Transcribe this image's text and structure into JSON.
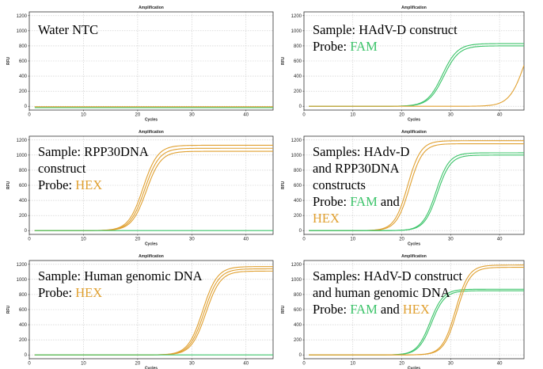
{
  "colors": {
    "FAM": "#3cc46a",
    "HEX": "#e0a030",
    "plot_border": "#333333",
    "grid": "#c8c8c8",
    "baseline": "#e6b85c"
  },
  "chart_data": [
    {
      "type": "line",
      "title": "Amplification",
      "xlabel": "Cycles",
      "ylabel": "RFU",
      "xlim": [
        0,
        45
      ],
      "ylim": [
        -50,
        1250
      ],
      "xticks": [
        0,
        10,
        20,
        30,
        40
      ],
      "yticks": [
        0,
        200,
        400,
        600,
        800,
        1000,
        1200
      ],
      "annotation": [
        [
          {
            "text": "Water NTC",
            "color": "black"
          }
        ]
      ],
      "series": [
        {
          "color": "FAM",
          "baseline": -18,
          "plateau": -18,
          "midpoint": 99,
          "slope": 1
        },
        {
          "color": "HEX",
          "baseline": -6,
          "plateau": -6,
          "midpoint": 99,
          "slope": 1
        }
      ]
    },
    {
      "type": "line",
      "title": "Amplification",
      "xlabel": "Cycles",
      "ylabel": "RFU",
      "xlim": [
        0,
        45
      ],
      "ylim": [
        -50,
        1250
      ],
      "xticks": [
        0,
        10,
        20,
        30,
        40
      ],
      "yticks": [
        0,
        200,
        400,
        600,
        800,
        1000,
        1200
      ],
      "annotation": [
        [
          {
            "text": "Sample: HAdV-D construct",
            "color": "black"
          }
        ],
        [
          {
            "text": "Probe: ",
            "color": "black"
          },
          {
            "text": "FAM",
            "color": "FAM"
          }
        ]
      ],
      "series": [
        {
          "color": "FAM",
          "baseline": 0,
          "plateau": 830,
          "midpoint": 28.3,
          "slope": 1.55
        },
        {
          "color": "FAM",
          "baseline": 0,
          "plateau": 800,
          "midpoint": 28.6,
          "slope": 1.55
        },
        {
          "color": "HEX",
          "baseline": 0,
          "plateau": 1200,
          "midpoint": 45.3,
          "slope": 1.6
        }
      ]
    },
    {
      "type": "line",
      "title": "Amplification",
      "xlabel": "Cycles",
      "ylabel": "RFU",
      "xlim": [
        0,
        45
      ],
      "ylim": [
        -50,
        1250
      ],
      "xticks": [
        0,
        10,
        20,
        30,
        40
      ],
      "yticks": [
        0,
        200,
        400,
        600,
        800,
        1000,
        1200
      ],
      "annotation": [
        [
          {
            "text": "Sample: RPP30DNA",
            "color": "black"
          }
        ],
        [
          {
            "text": "construct",
            "color": "black"
          }
        ],
        [
          {
            "text": "Probe: ",
            "color": "black"
          },
          {
            "text": "HEX",
            "color": "HEX"
          }
        ]
      ],
      "series": [
        {
          "color": "HEX",
          "baseline": 0,
          "plateau": 1130,
          "midpoint": 21.0,
          "slope": 1.35
        },
        {
          "color": "HEX",
          "baseline": 0,
          "plateau": 1090,
          "midpoint": 21.3,
          "slope": 1.35
        },
        {
          "color": "HEX",
          "baseline": 0,
          "plateau": 1050,
          "midpoint": 21.6,
          "slope": 1.35
        },
        {
          "color": "FAM",
          "baseline": 0,
          "plateau": 0,
          "midpoint": 99,
          "slope": 1
        }
      ]
    },
    {
      "type": "line",
      "title": "Amplification",
      "xlabel": "Cycles",
      "ylabel": "RFU",
      "xlim": [
        0,
        45
      ],
      "ylim": [
        -50,
        1250
      ],
      "xticks": [
        0,
        10,
        20,
        30,
        40
      ],
      "yticks": [
        0,
        200,
        400,
        600,
        800,
        1000,
        1200
      ],
      "annotation": [
        [
          {
            "text": "Samples: HAdv-D",
            "color": "black"
          }
        ],
        [
          {
            "text": "and RPP30DNA",
            "color": "black"
          }
        ],
        [
          {
            "text": "constructs",
            "color": "black"
          }
        ],
        [
          {
            "text": "Probe: ",
            "color": "black"
          },
          {
            "text": "FAM",
            "color": "FAM"
          },
          {
            "text": " and",
            "color": "black"
          }
        ],
        [
          {
            "text": "HEX",
            "color": "HEX"
          }
        ]
      ],
      "series": [
        {
          "color": "HEX",
          "baseline": 0,
          "plateau": 1190,
          "midpoint": 21.2,
          "slope": 1.35
        },
        {
          "color": "HEX",
          "baseline": 0,
          "plateau": 1150,
          "midpoint": 21.6,
          "slope": 1.35
        },
        {
          "color": "FAM",
          "baseline": 0,
          "plateau": 1030,
          "midpoint": 27.0,
          "slope": 1.35
        },
        {
          "color": "FAM",
          "baseline": 0,
          "plateau": 1000,
          "midpoint": 27.3,
          "slope": 1.35
        }
      ]
    },
    {
      "type": "line",
      "title": "Amplification",
      "xlabel": "Cycles",
      "ylabel": "RFU",
      "xlim": [
        0,
        45
      ],
      "ylim": [
        -50,
        1250
      ],
      "xticks": [
        0,
        10,
        20,
        30,
        40
      ],
      "yticks": [
        0,
        200,
        400,
        600,
        800,
        1000,
        1200
      ],
      "annotation": [
        [
          {
            "text": "Sample: Human genomic DNA",
            "color": "black"
          }
        ],
        [
          {
            "text": "Probe: ",
            "color": "black"
          },
          {
            "text": "HEX",
            "color": "HEX"
          }
        ]
      ],
      "series": [
        {
          "color": "HEX",
          "baseline": 0,
          "plateau": 1170,
          "midpoint": 32.0,
          "slope": 1.35
        },
        {
          "color": "HEX",
          "baseline": 0,
          "plateau": 1140,
          "midpoint": 32.3,
          "slope": 1.35
        },
        {
          "color": "HEX",
          "baseline": 0,
          "plateau": 1110,
          "midpoint": 32.6,
          "slope": 1.35
        },
        {
          "color": "FAM",
          "baseline": 0,
          "plateau": 0,
          "midpoint": 99,
          "slope": 1
        }
      ]
    },
    {
      "type": "line",
      "title": "Amplification",
      "xlabel": "Cycles",
      "ylabel": "RFU",
      "xlim": [
        0,
        45
      ],
      "ylim": [
        -50,
        1250
      ],
      "xticks": [
        0,
        10,
        20,
        30,
        40
      ],
      "yticks": [
        0,
        200,
        400,
        600,
        800,
        1000,
        1200
      ],
      "annotation": [
        [
          {
            "text": "Samples: HAdV-D construct",
            "color": "black"
          }
        ],
        [
          {
            "text": "and human genomic DNA",
            "color": "black"
          }
        ],
        [
          {
            "text": "Probe: ",
            "color": "black"
          },
          {
            "text": "FAM",
            "color": "FAM"
          },
          {
            "text": " and ",
            "color": "black"
          },
          {
            "text": "HEX",
            "color": "HEX"
          }
        ]
      ],
      "series": [
        {
          "color": "FAM",
          "baseline": 0,
          "plateau": 870,
          "midpoint": 25.8,
          "slope": 1.35
        },
        {
          "color": "FAM",
          "baseline": 0,
          "plateau": 850,
          "midpoint": 26.1,
          "slope": 1.35
        },
        {
          "color": "HEX",
          "baseline": 0,
          "plateau": 1190,
          "midpoint": 31.0,
          "slope": 1.35
        },
        {
          "color": "HEX",
          "baseline": 0,
          "plateau": 1160,
          "midpoint": 31.3,
          "slope": 1.35
        }
      ]
    }
  ]
}
